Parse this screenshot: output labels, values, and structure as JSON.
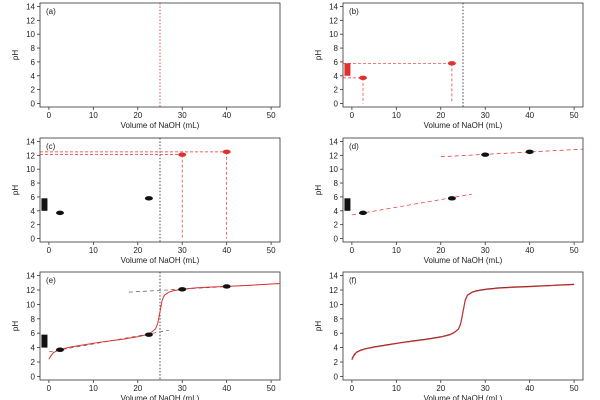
{
  "chart_data": [
    {
      "type": "line",
      "panel_label": "(a)",
      "xlabel": "Volume of NaOH (mL)",
      "ylabel": "pH",
      "xlim": [
        -2,
        52
      ],
      "ylim": [
        -0.5,
        14.5
      ],
      "xticks": [
        0,
        10,
        20,
        30,
        40,
        50
      ],
      "yticks": [
        0,
        2,
        4,
        6,
        8,
        10,
        12,
        14
      ],
      "vlines": [
        {
          "x": 25,
          "style": "dotted",
          "color": "#e03030"
        }
      ],
      "points": [],
      "bars": [],
      "guides": [],
      "segments": [],
      "curves": []
    },
    {
      "type": "scatter",
      "panel_label": "(b)",
      "xlabel": "Volume of NaOH (mL)",
      "ylabel": "pH",
      "xlim": [
        -2,
        52
      ],
      "ylim": [
        -0.5,
        14.5
      ],
      "xticks": [
        0,
        10,
        20,
        30,
        40,
        50
      ],
      "yticks": [
        0,
        2,
        4,
        6,
        8,
        10,
        12,
        14
      ],
      "vlines": [
        {
          "x": 25,
          "style": "dotted",
          "color": "#333333"
        }
      ],
      "bars": [
        {
          "x": -1,
          "y0": 4,
          "y1": 5.8,
          "color": "#e03030"
        }
      ],
      "points": [
        {
          "x": 2.5,
          "y": 3.7,
          "color": "#e03030"
        },
        {
          "x": 22.5,
          "y": 5.8,
          "color": "#e03030"
        }
      ],
      "guides": [
        {
          "x": 2.5,
          "y": 3.7,
          "from": 0,
          "color": "#e03030"
        },
        {
          "x": 22.5,
          "y": 5.8,
          "from": 0,
          "color": "#e03030"
        }
      ],
      "segments": [],
      "curves": []
    },
    {
      "type": "scatter",
      "panel_label": "(c)",
      "xlabel": "Volume of NaOH (mL)",
      "ylabel": "pH",
      "xlim": [
        -2,
        52
      ],
      "ylim": [
        -0.5,
        14.5
      ],
      "xticks": [
        0,
        10,
        20,
        30,
        40,
        50
      ],
      "yticks": [
        0,
        2,
        4,
        6,
        8,
        10,
        12,
        14
      ],
      "vlines": [
        {
          "x": 25,
          "style": "dotted",
          "color": "#333333"
        }
      ],
      "bars": [
        {
          "x": -1,
          "y0": 4,
          "y1": 5.8,
          "color": "#111111"
        }
      ],
      "points": [
        {
          "x": 2.5,
          "y": 3.7,
          "color": "#111111"
        },
        {
          "x": 22.5,
          "y": 5.8,
          "color": "#111111"
        },
        {
          "x": 30,
          "y": 12.1,
          "color": "#e03030"
        },
        {
          "x": 40,
          "y": 12.5,
          "color": "#e03030"
        }
      ],
      "guides": [
        {
          "x": 30,
          "y": 12.1,
          "from": 0,
          "color": "#e03030"
        },
        {
          "x": 40,
          "y": 12.5,
          "from": 0,
          "color": "#e03030"
        }
      ],
      "segments": [],
      "curves": []
    },
    {
      "type": "scatter",
      "panel_label": "(d)",
      "xlabel": "Volume of NaOH (mL)",
      "ylabel": "pH",
      "xlim": [
        -2,
        52
      ],
      "ylim": [
        -0.5,
        14.5
      ],
      "xticks": [
        0,
        10,
        20,
        30,
        40,
        50
      ],
      "yticks": [
        0,
        2,
        4,
        6,
        8,
        10,
        12,
        14
      ],
      "vlines": [],
      "bars": [
        {
          "x": -1,
          "y0": 4,
          "y1": 5.8,
          "color": "#111111"
        }
      ],
      "points": [
        {
          "x": 2.5,
          "y": 3.7,
          "color": "#111111"
        },
        {
          "x": 22.5,
          "y": 5.8,
          "color": "#111111"
        },
        {
          "x": 30,
          "y": 12.1,
          "color": "#111111"
        },
        {
          "x": 40,
          "y": 12.5,
          "color": "#111111"
        }
      ],
      "guides": [],
      "segments": [
        {
          "x0": 0,
          "y0": 3.4,
          "x1": 27,
          "y1": 6.4,
          "color": "#e03030"
        },
        {
          "x0": 20,
          "y0": 11.8,
          "x1": 52,
          "y1": 12.9,
          "color": "#e03030"
        }
      ],
      "curves": []
    },
    {
      "type": "line",
      "panel_label": "(e)",
      "xlabel": "Volume of NaOH (mL)",
      "ylabel": "pH",
      "xlim": [
        -2,
        52
      ],
      "ylim": [
        -0.5,
        14.5
      ],
      "xticks": [
        0,
        10,
        20,
        30,
        40,
        50
      ],
      "yticks": [
        0,
        2,
        4,
        6,
        8,
        10,
        12,
        14
      ],
      "vlines": [
        {
          "x": 25,
          "style": "dotted",
          "color": "#333333"
        }
      ],
      "bars": [
        {
          "x": -1,
          "y0": 4,
          "y1": 5.8,
          "color": "#111111"
        }
      ],
      "points": [
        {
          "x": 2.5,
          "y": 3.7,
          "color": "#111111"
        },
        {
          "x": 22.5,
          "y": 5.8,
          "color": "#111111"
        },
        {
          "x": 30,
          "y": 12.1,
          "color": "#111111"
        },
        {
          "x": 40,
          "y": 12.5,
          "color": "#111111"
        }
      ],
      "guides": [],
      "segments": [
        {
          "x0": 0,
          "y0": 3.4,
          "x1": 27,
          "y1": 6.4,
          "color": "#555555"
        },
        {
          "x0": 18,
          "y0": 11.7,
          "x1": 52,
          "y1": 12.9,
          "color": "#555555"
        }
      ],
      "curves": [
        {
          "color": "#e03030",
          "x": [
            0,
            0.5,
            1,
            2,
            3,
            5,
            8,
            11,
            14,
            17,
            20,
            22,
            23,
            24,
            24.5,
            25,
            25.5,
            26,
            27,
            28,
            30,
            33,
            36,
            40,
            45,
            52
          ],
          "y": [
            2.4,
            2.9,
            3.3,
            3.6,
            3.8,
            4.1,
            4.4,
            4.7,
            4.95,
            5.2,
            5.5,
            5.8,
            6.1,
            6.6,
            7.4,
            9.0,
            10.6,
            11.3,
            11.7,
            11.9,
            12.1,
            12.3,
            12.4,
            12.5,
            12.65,
            12.9
          ]
        }
      ]
    },
    {
      "type": "line",
      "panel_label": "(f)",
      "xlabel": "Volume of NaOH (mL)",
      "ylabel": "pH",
      "xlim": [
        -2,
        52
      ],
      "ylim": [
        -0.5,
        14.5
      ],
      "xticks": [
        0,
        10,
        20,
        30,
        40,
        50
      ],
      "yticks": [
        0,
        2,
        4,
        6,
        8,
        10,
        12,
        14
      ],
      "vlines": [],
      "bars": [],
      "points": [],
      "guides": [],
      "segments": [],
      "curves": [
        {
          "color": "#111111",
          "x": [
            0,
            0.5,
            1,
            2,
            3,
            5,
            8,
            11,
            14,
            17,
            20,
            22,
            23,
            24,
            24.5,
            25,
            25.5,
            26,
            27,
            28,
            30,
            33,
            36,
            40,
            45,
            50
          ],
          "y": [
            2.4,
            3.0,
            3.35,
            3.65,
            3.85,
            4.1,
            4.4,
            4.7,
            4.95,
            5.2,
            5.5,
            5.8,
            6.1,
            6.6,
            7.4,
            9.0,
            10.6,
            11.3,
            11.7,
            11.9,
            12.1,
            12.3,
            12.4,
            12.5,
            12.65,
            12.8
          ]
        },
        {
          "color": "#e03030",
          "x": [
            0,
            0.5,
            1,
            2,
            3,
            5,
            8,
            11,
            14,
            17,
            20,
            22,
            23,
            24,
            24.5,
            25,
            25.5,
            26,
            27,
            28,
            30,
            33,
            36,
            40,
            45,
            50
          ],
          "y": [
            2.3,
            2.9,
            3.3,
            3.6,
            3.8,
            4.05,
            4.35,
            4.65,
            4.9,
            5.15,
            5.45,
            5.75,
            6.05,
            6.55,
            7.3,
            8.9,
            10.5,
            11.25,
            11.65,
            11.85,
            12.05,
            12.25,
            12.35,
            12.45,
            12.6,
            12.75
          ]
        }
      ]
    }
  ]
}
